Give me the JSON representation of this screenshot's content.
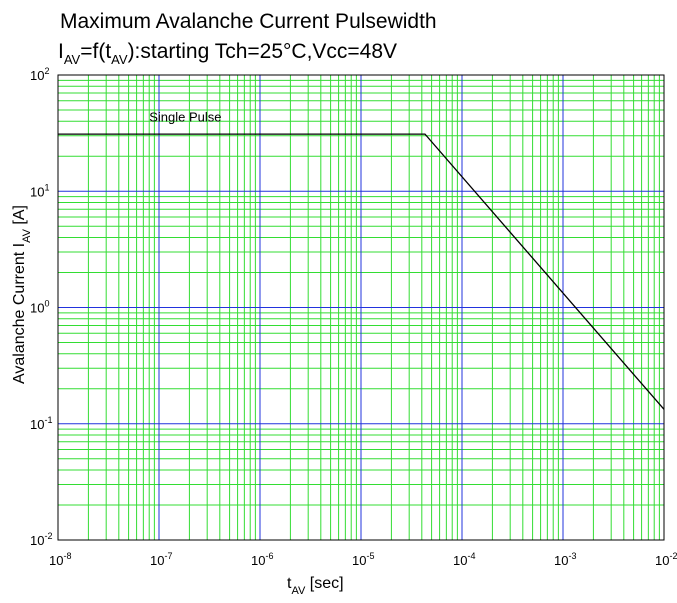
{
  "chart_data": {
    "type": "line",
    "title_line1": "Maximum Avalanche Current Pulsewidth",
    "title_line2": {
      "text_I": "I",
      "sub_AV_1": "AV",
      "text_eq_f": "=f(t",
      "sub_AV_2": "AV",
      "text_rest": "):starting Tch=25°C,Vcc=48V"
    },
    "xlabel": {
      "text_t": "t",
      "sub_AV": "AV",
      "text_rest": " [sec]"
    },
    "ylabel": {
      "text_main": "Avalanche Current I",
      "sub_AV": "AV",
      "text_rest": " [A]"
    },
    "x_scale": "log",
    "y_scale": "log",
    "xlim": [
      1e-08,
      0.01
    ],
    "ylim": [
      0.01,
      100
    ],
    "x_ticks": [
      {
        "base": "10",
        "exp": "-8"
      },
      {
        "base": "10",
        "exp": "-7"
      },
      {
        "base": "10",
        "exp": "-6"
      },
      {
        "base": "10",
        "exp": "-5"
      },
      {
        "base": "10",
        "exp": "-4"
      },
      {
        "base": "10",
        "exp": "-3"
      },
      {
        "base": "10",
        "exp": "-2"
      }
    ],
    "y_ticks": [
      {
        "base": "10",
        "exp": "2"
      },
      {
        "base": "10",
        "exp": "1"
      },
      {
        "base": "10",
        "exp": "0"
      },
      {
        "base": "10",
        "exp": "-1"
      },
      {
        "base": "10",
        "exp": "-2"
      }
    ],
    "grid": true,
    "colors": {
      "major_grid": "#2233dd",
      "minor_grid": "#33dd33",
      "line": "#000000",
      "frame": "#000000"
    },
    "series": [
      {
        "x": [
          1e-08,
          4.3e-05,
          0.01
        ],
        "y": [
          31,
          31,
          0.133
        ]
      }
    ],
    "annotation": {
      "text": "Single Pulse",
      "x": 8e-08,
      "y": 40
    }
  }
}
